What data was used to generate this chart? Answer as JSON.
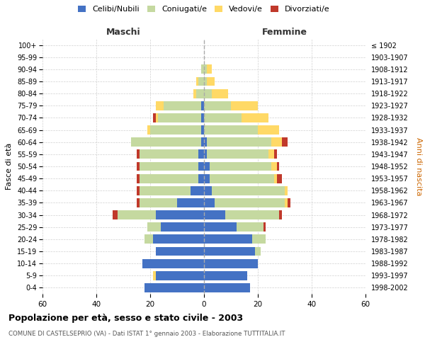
{
  "age_groups": [
    "0-4",
    "5-9",
    "10-14",
    "15-19",
    "20-24",
    "25-29",
    "30-34",
    "35-39",
    "40-44",
    "45-49",
    "50-54",
    "55-59",
    "60-64",
    "65-69",
    "70-74",
    "75-79",
    "80-84",
    "85-89",
    "90-94",
    "95-99",
    "100+"
  ],
  "birth_years": [
    "1998-2002",
    "1993-1997",
    "1988-1992",
    "1983-1987",
    "1978-1982",
    "1973-1977",
    "1968-1972",
    "1963-1967",
    "1958-1962",
    "1953-1957",
    "1948-1952",
    "1943-1947",
    "1938-1942",
    "1933-1937",
    "1928-1932",
    "1923-1927",
    "1918-1922",
    "1913-1917",
    "1908-1912",
    "1903-1907",
    "≤ 1902"
  ],
  "maschi": {
    "celibi": [
      22,
      18,
      23,
      18,
      19,
      16,
      18,
      10,
      5,
      2,
      2,
      2,
      1,
      1,
      1,
      1,
      0,
      0,
      0,
      0,
      0
    ],
    "coniugati": [
      0,
      0,
      0,
      0,
      3,
      5,
      14,
      14,
      19,
      22,
      22,
      22,
      26,
      19,
      16,
      14,
      3,
      2,
      1,
      0,
      0
    ],
    "vedovi": [
      0,
      1,
      0,
      0,
      0,
      0,
      0,
      0,
      0,
      0,
      0,
      0,
      0,
      1,
      1,
      3,
      1,
      1,
      0,
      0,
      0
    ],
    "divorziati": [
      0,
      0,
      0,
      0,
      0,
      0,
      2,
      1,
      1,
      1,
      1,
      1,
      0,
      0,
      1,
      0,
      0,
      0,
      0,
      0,
      0
    ]
  },
  "femmine": {
    "nubili": [
      17,
      16,
      20,
      19,
      18,
      12,
      8,
      4,
      3,
      2,
      2,
      1,
      1,
      0,
      0,
      0,
      0,
      0,
      0,
      0,
      0
    ],
    "coniugate": [
      0,
      0,
      0,
      2,
      5,
      10,
      20,
      26,
      27,
      24,
      23,
      23,
      24,
      20,
      14,
      10,
      3,
      1,
      1,
      0,
      0
    ],
    "vedove": [
      0,
      0,
      0,
      0,
      0,
      0,
      0,
      1,
      1,
      1,
      2,
      2,
      4,
      8,
      10,
      10,
      6,
      3,
      2,
      0,
      0
    ],
    "divorziate": [
      0,
      0,
      0,
      0,
      0,
      1,
      1,
      1,
      0,
      2,
      1,
      1,
      2,
      0,
      0,
      0,
      0,
      0,
      0,
      0,
      0
    ]
  },
  "colors": {
    "celibi_nubili": "#4472C4",
    "coniugati": "#C5D9A0",
    "vedovi": "#FFD966",
    "divorziati": "#C0392B"
  },
  "xlim": 60,
  "title": "Popolazione per età, sesso e stato civile - 2003",
  "subtitle": "COMUNE DI CASTELSEPRIO (VA) - Dati ISTAT 1° gennaio 2003 - Elaborazione TUTTITALIA.IT",
  "ylabel_left": "Fasce di età",
  "ylabel_right": "Anni di nascita",
  "xlabel_maschi": "Maschi",
  "xlabel_femmine": "Femmine"
}
